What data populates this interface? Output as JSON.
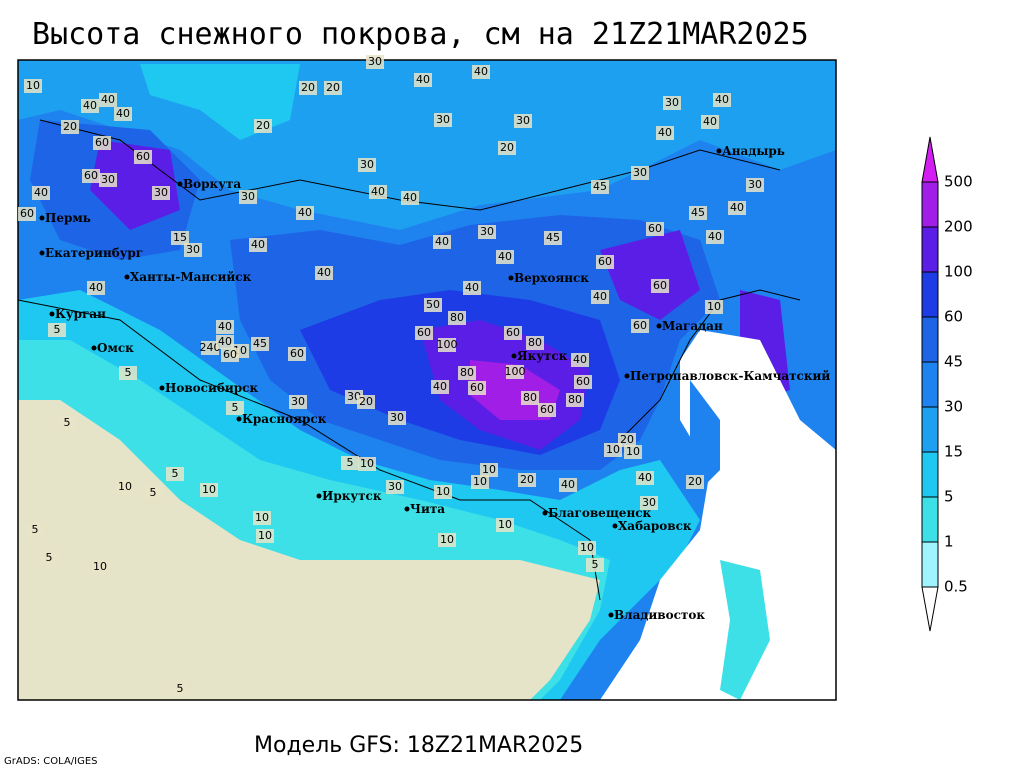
{
  "title": "Высота снежного покрова, см на 21Z21MAR2025",
  "subtitle": "Модель GFS: 18Z21MAR2025",
  "credit": "GrADS: COLA/IGES",
  "colorbar": {
    "levels": [
      0.5,
      1,
      5,
      15,
      30,
      45,
      60,
      100,
      200,
      500
    ],
    "colors": [
      "#ffffff",
      "#9ff5ff",
      "#3ee0e8",
      "#1ec8f0",
      "#1ea0f0",
      "#1e82ef",
      "#1e64e6",
      "#1e3ce6",
      "#5a1ee6",
      "#a01ee6",
      "#d21ef0"
    ]
  },
  "cities": [
    "Воркута",
    "Пермь",
    "Екатеринбург",
    "Ханты-Мансийск",
    "Курган",
    "Омск",
    "Новосибирск",
    "Красноярск",
    "Иркутск",
    "Чита",
    "Благовещенск",
    "Хабаровск",
    "Владивосток",
    "Якутск",
    "Верхоянск",
    "Магадан",
    "Петропавловск-Камчатский",
    "Анадырь"
  ],
  "contour_labels": [
    30,
    40,
    40,
    20,
    20,
    20,
    30,
    30,
    20,
    30,
    40,
    40,
    40,
    30,
    40,
    40,
    30,
    45,
    30,
    40,
    45,
    40,
    40,
    30,
    40,
    60,
    40,
    45,
    40,
    60,
    40,
    40,
    40,
    60,
    50,
    80,
    60,
    60,
    80,
    10,
    60,
    40,
    100,
    45,
    60,
    240,
    40,
    80,
    100,
    40,
    60,
    60,
    80,
    80,
    60,
    30,
    20,
    30,
    30,
    20,
    10,
    10,
    5,
    10,
    10,
    20,
    10,
    40,
    40,
    20,
    30,
    10,
    30,
    10,
    10,
    10,
    10,
    10,
    5,
    10,
    5,
    5,
    5,
    5,
    10,
    5,
    10,
    5,
    5,
    5,
    5,
    10,
    40,
    40,
    40,
    20,
    60,
    60,
    60,
    30,
    40,
    30,
    60,
    15,
    30,
    30,
    40,
    10,
    40,
    60
  ]
}
